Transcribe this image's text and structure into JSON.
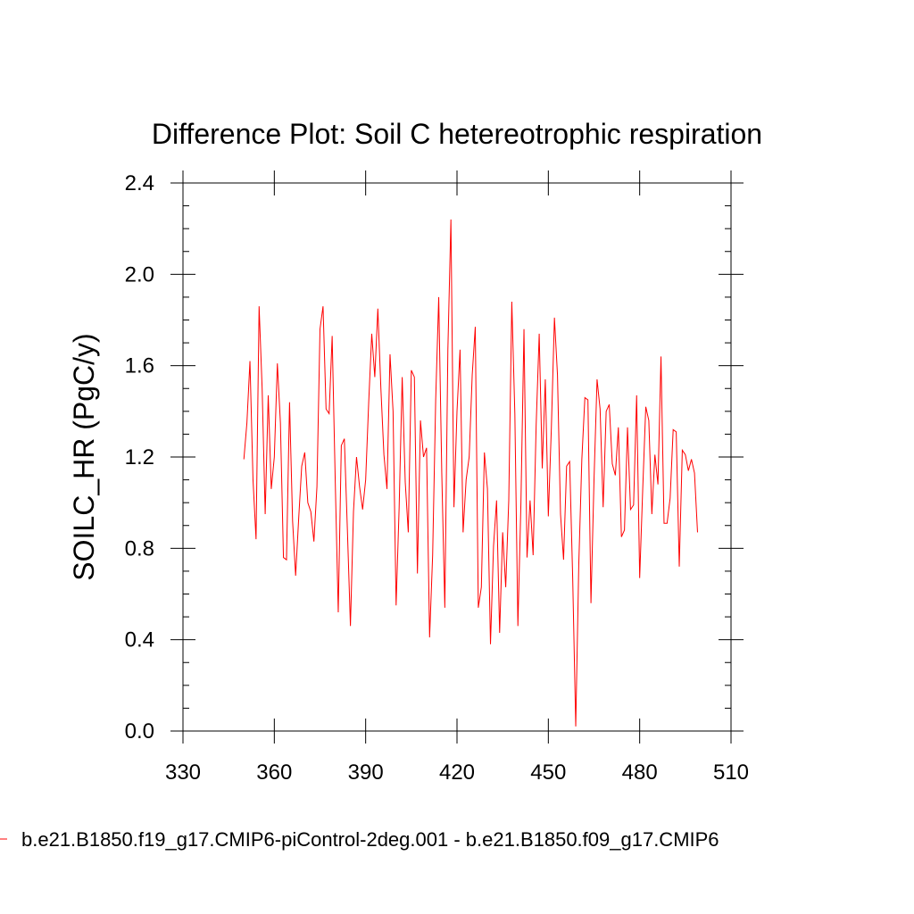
{
  "chart_data": {
    "type": "line",
    "title": "Difference Plot: Soil C hetereotrophic respiration",
    "xlabel": "",
    "ylabel": "SOILC_HR  (PgC/y)",
    "xlim": [
      330,
      510
    ],
    "ylim": [
      0.0,
      2.4
    ],
    "x_ticks": [
      "330",
      "360",
      "390",
      "420",
      "450",
      "480",
      "510"
    ],
    "y_ticks": [
      "0.0",
      "0.4",
      "0.8",
      "1.2",
      "1.6",
      "2.0",
      "2.4"
    ],
    "grid": false,
    "legend_position": "bottom",
    "series": [
      {
        "name": "b.e21.B1850.f19_g17.CMIP6-piControl-2deg.001 - b.e21.B1850.f09_g17.CMIP6",
        "color": "#ff0000",
        "x": [
          350,
          351,
          352,
          353,
          354,
          355,
          356,
          357,
          358,
          359,
          360,
          361,
          362,
          363,
          364,
          365,
          366,
          367,
          368,
          369,
          370,
          371,
          372,
          373,
          374,
          375,
          376,
          377,
          378,
          379,
          380,
          381,
          382,
          383,
          384,
          385,
          386,
          387,
          388,
          389,
          390,
          391,
          392,
          393,
          394,
          395,
          396,
          397,
          398,
          399,
          400,
          401,
          402,
          403,
          404,
          405,
          406,
          407,
          408,
          409,
          410,
          411,
          412,
          413,
          414,
          415,
          416,
          417,
          418,
          419,
          420,
          421,
          422,
          423,
          424,
          425,
          426,
          427,
          428,
          429,
          430,
          431,
          432,
          433,
          434,
          435,
          436,
          437,
          438,
          439,
          440,
          441,
          442,
          443,
          444,
          445,
          446,
          447,
          448,
          449,
          450,
          451,
          452,
          453,
          454,
          455,
          456,
          457,
          458,
          459,
          460,
          461,
          462,
          463,
          464,
          465,
          466,
          467,
          468,
          469,
          470,
          471,
          472,
          473,
          474,
          475,
          476,
          477,
          478,
          479,
          480,
          481,
          482,
          483,
          484,
          485,
          486,
          487,
          488,
          489,
          490,
          491,
          492,
          493,
          494,
          495,
          496,
          497,
          498,
          499
        ],
        "values": [
          1.19,
          1.35,
          1.62,
          1.1,
          0.84,
          1.86,
          1.5,
          0.95,
          1.47,
          1.06,
          1.2,
          1.61,
          1.35,
          0.76,
          0.75,
          1.44,
          0.92,
          0.68,
          0.93,
          1.16,
          1.22,
          1.0,
          0.96,
          0.83,
          1.07,
          1.76,
          1.86,
          1.41,
          1.39,
          1.73,
          1.1,
          0.52,
          1.25,
          1.28,
          0.88,
          0.46,
          0.96,
          1.2,
          1.07,
          0.97,
          1.1,
          1.44,
          1.74,
          1.55,
          1.85,
          1.5,
          1.21,
          1.06,
          1.65,
          1.4,
          0.55,
          0.98,
          1.55,
          1.09,
          0.87,
          1.58,
          1.55,
          0.69,
          1.36,
          1.2,
          1.24,
          0.41,
          0.77,
          1.45,
          1.9,
          1.13,
          0.54,
          1.67,
          2.24,
          0.98,
          1.4,
          1.67,
          0.87,
          1.1,
          1.2,
          1.56,
          1.77,
          0.54,
          0.63,
          1.22,
          1.06,
          0.38,
          0.81,
          1.01,
          0.43,
          0.87,
          0.63,
          1.01,
          1.88,
          1.39,
          0.46,
          1.0,
          1.76,
          0.76,
          1.01,
          0.77,
          1.34,
          1.74,
          1.15,
          1.54,
          0.94,
          1.33,
          1.81,
          1.56,
          0.95,
          0.75,
          1.16,
          1.18,
          0.67,
          0.02,
          0.73,
          1.19,
          1.46,
          1.45,
          0.56,
          1.1,
          1.54,
          1.41,
          0.98,
          1.4,
          1.43,
          1.17,
          1.12,
          1.33,
          0.85,
          0.88,
          1.33,
          0.97,
          0.99,
          1.47,
          0.67,
          1.06,
          1.42,
          1.36,
          0.95,
          1.21,
          1.08,
          1.64,
          0.91,
          0.91,
          1.02,
          1.32,
          1.31,
          0.72,
          1.23,
          1.21,
          1.14,
          1.19,
          1.13,
          0.87
        ]
      }
    ]
  }
}
